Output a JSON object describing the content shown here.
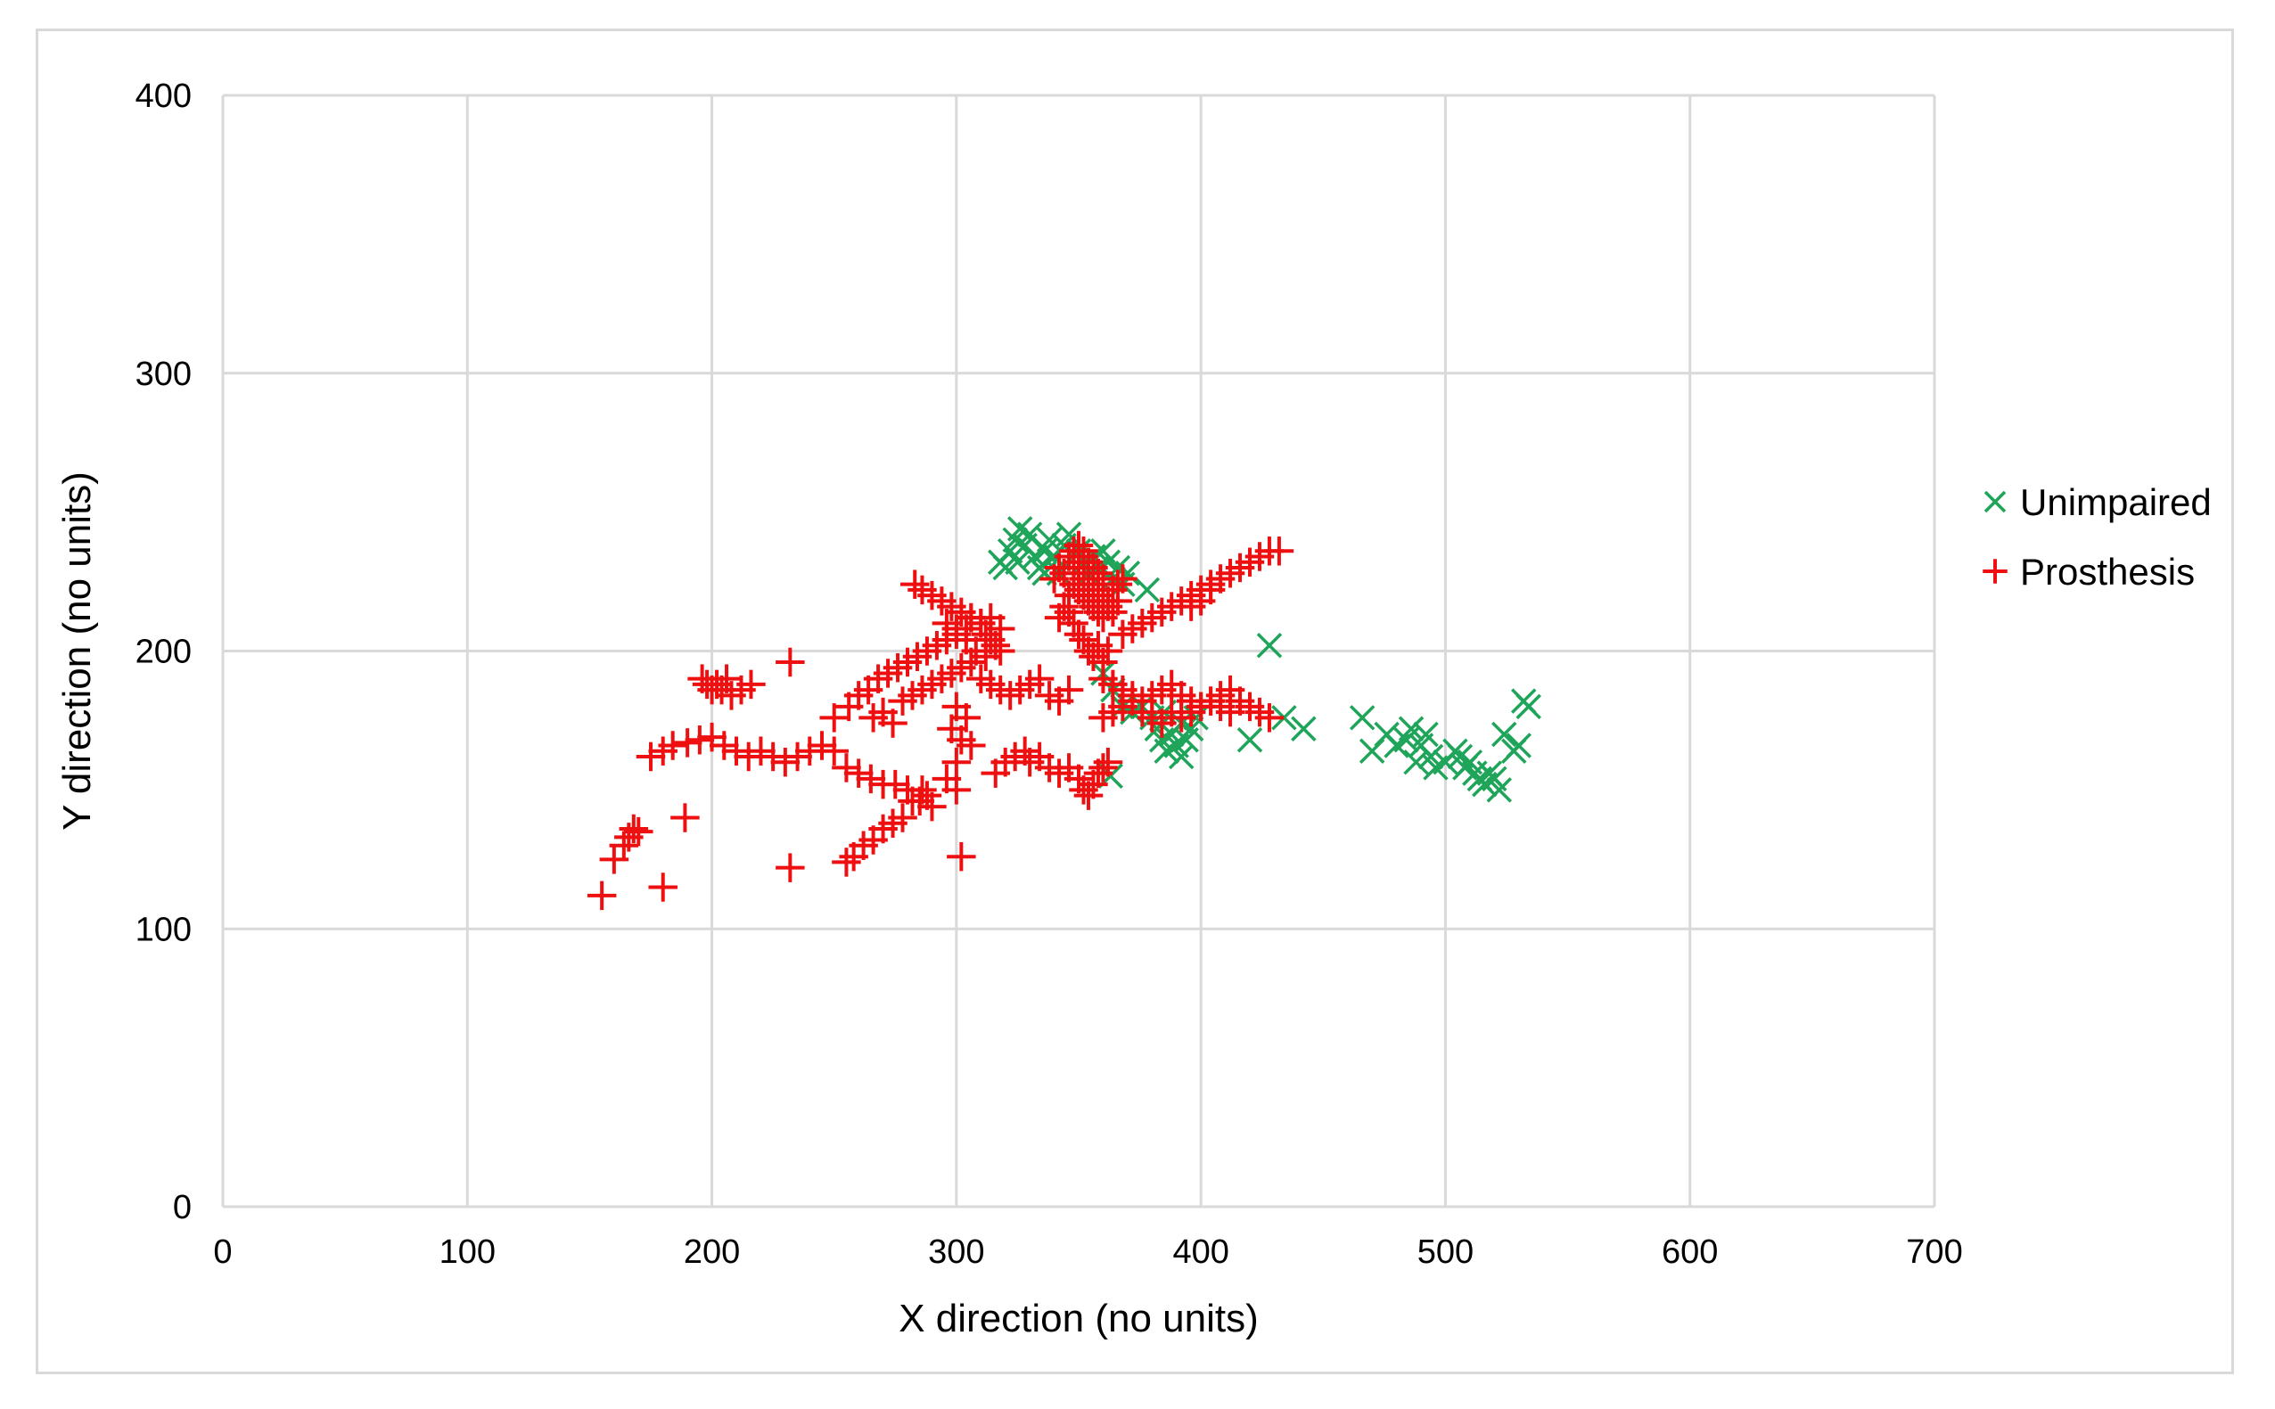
{
  "chart_data": {
    "type": "scatter",
    "title": "",
    "xlabel": "X direction (no units)",
    "ylabel": "Y direction (no units)",
    "xlim": [
      0,
      700
    ],
    "ylim": [
      0,
      400
    ],
    "x_ticks": [
      0,
      100,
      200,
      300,
      400,
      500,
      600,
      700
    ],
    "y_ticks": [
      0,
      100,
      200,
      300,
      400
    ],
    "grid": true,
    "legend_position": "right",
    "series": [
      {
        "name": "Unimpaired",
        "marker": "x",
        "color": "#1fa55a",
        "points": [
          [
            318,
            232
          ],
          [
            322,
            236
          ],
          [
            324,
            240
          ],
          [
            326,
            244
          ],
          [
            328,
            238
          ],
          [
            330,
            242
          ],
          [
            332,
            234
          ],
          [
            334,
            230
          ],
          [
            336,
            236
          ],
          [
            338,
            240
          ],
          [
            340,
            234
          ],
          [
            342,
            228
          ],
          [
            344,
            238
          ],
          [
            346,
            242
          ],
          [
            350,
            236
          ],
          [
            352,
            232
          ],
          [
            354,
            228
          ],
          [
            356,
            234
          ],
          [
            358,
            230
          ],
          [
            360,
            236
          ],
          [
            362,
            232
          ],
          [
            364,
            226
          ],
          [
            366,
            230
          ],
          [
            368,
            224
          ],
          [
            370,
            228
          ],
          [
            378,
            222
          ],
          [
            320,
            230
          ],
          [
            325,
            232
          ],
          [
            336,
            228
          ],
          [
            360,
            192
          ],
          [
            364,
            186
          ],
          [
            368,
            180
          ],
          [
            372,
            178
          ],
          [
            376,
            180
          ],
          [
            380,
            176
          ],
          [
            382,
            172
          ],
          [
            384,
            168
          ],
          [
            386,
            164
          ],
          [
            388,
            170
          ],
          [
            390,
            166
          ],
          [
            392,
            162
          ],
          [
            394,
            168
          ],
          [
            396,
            172
          ],
          [
            398,
            176
          ],
          [
            385,
            178
          ],
          [
            392,
            174
          ],
          [
            363,
            155
          ],
          [
            420,
            168
          ],
          [
            428,
            202
          ],
          [
            434,
            176
          ],
          [
            442,
            172
          ],
          [
            466,
            176
          ],
          [
            470,
            164
          ],
          [
            476,
            170
          ],
          [
            480,
            166
          ],
          [
            484,
            168
          ],
          [
            486,
            172
          ],
          [
            488,
            160
          ],
          [
            490,
            166
          ],
          [
            492,
            170
          ],
          [
            494,
            162
          ],
          [
            496,
            158
          ],
          [
            500,
            160
          ],
          [
            504,
            164
          ],
          [
            506,
            162
          ],
          [
            508,
            158
          ],
          [
            510,
            160
          ],
          [
            512,
            156
          ],
          [
            514,
            154
          ],
          [
            516,
            152
          ],
          [
            518,
            156
          ],
          [
            520,
            154
          ],
          [
            522,
            150
          ],
          [
            524,
            170
          ],
          [
            528,
            164
          ],
          [
            530,
            166
          ],
          [
            532,
            182
          ],
          [
            534,
            180
          ]
        ]
      },
      {
        "name": "Prosthesis",
        "marker": "+",
        "color": "#ee1010",
        "points": [
          [
            155,
            112
          ],
          [
            160,
            125
          ],
          [
            164,
            130
          ],
          [
            166,
            133
          ],
          [
            168,
            136
          ],
          [
            170,
            135
          ],
          [
            180,
            115
          ],
          [
            189,
            140
          ],
          [
            232,
            122
          ],
          [
            255,
            124
          ],
          [
            258,
            126
          ],
          [
            262,
            130
          ],
          [
            266,
            132
          ],
          [
            270,
            136
          ],
          [
            274,
            138
          ],
          [
            278,
            140
          ],
          [
            282,
            146
          ],
          [
            286,
            150
          ],
          [
            288,
            148
          ],
          [
            302,
            126
          ],
          [
            175,
            162
          ],
          [
            180,
            164
          ],
          [
            184,
            166
          ],
          [
            190,
            167
          ],
          [
            195,
            168
          ],
          [
            200,
            169
          ],
          [
            205,
            166
          ],
          [
            210,
            164
          ],
          [
            215,
            162
          ],
          [
            220,
            164
          ],
          [
            225,
            162
          ],
          [
            230,
            160
          ],
          [
            235,
            162
          ],
          [
            240,
            164
          ],
          [
            245,
            166
          ],
          [
            250,
            164
          ],
          [
            255,
            158
          ],
          [
            260,
            156
          ],
          [
            265,
            154
          ],
          [
            270,
            152
          ],
          [
            275,
            152
          ],
          [
            280,
            150
          ],
          [
            285,
            146
          ],
          [
            290,
            144
          ],
          [
            196,
            190
          ],
          [
            198,
            188
          ],
          [
            200,
            186
          ],
          [
            202,
            188
          ],
          [
            204,
            186
          ],
          [
            206,
            190
          ],
          [
            208,
            184
          ],
          [
            212,
            186
          ],
          [
            216,
            188
          ],
          [
            232,
            196
          ],
          [
            250,
            176
          ],
          [
            256,
            180
          ],
          [
            260,
            184
          ],
          [
            264,
            186
          ],
          [
            268,
            190
          ],
          [
            272,
            192
          ],
          [
            276,
            194
          ],
          [
            280,
            196
          ],
          [
            284,
            198
          ],
          [
            288,
            200
          ],
          [
            292,
            202
          ],
          [
            296,
            204
          ],
          [
            300,
            206
          ],
          [
            304,
            208
          ],
          [
            306,
            212
          ],
          [
            310,
            210
          ],
          [
            312,
            206
          ],
          [
            314,
            204
          ],
          [
            316,
            202
          ],
          [
            318,
            200
          ],
          [
            266,
            176
          ],
          [
            270,
            178
          ],
          [
            274,
            174
          ],
          [
            278,
            182
          ],
          [
            282,
            184
          ],
          [
            286,
            186
          ],
          [
            290,
            188
          ],
          [
            294,
            190
          ],
          [
            298,
            192
          ],
          [
            302,
            194
          ],
          [
            306,
            196
          ],
          [
            310,
            190
          ],
          [
            314,
            188
          ],
          [
            318,
            186
          ],
          [
            322,
            184
          ],
          [
            326,
            186
          ],
          [
            330,
            188
          ],
          [
            334,
            190
          ],
          [
            338,
            184
          ],
          [
            342,
            182
          ],
          [
            346,
            186
          ],
          [
            283,
            224
          ],
          [
            286,
            222
          ],
          [
            290,
            220
          ],
          [
            294,
            218
          ],
          [
            298,
            216
          ],
          [
            302,
            214
          ],
          [
            306,
            212
          ],
          [
            310,
            210
          ],
          [
            314,
            212
          ],
          [
            318,
            208
          ],
          [
            296,
            210
          ],
          [
            300,
            208
          ],
          [
            304,
            204
          ],
          [
            308,
            200
          ],
          [
            312,
            198
          ],
          [
            300,
            180
          ],
          [
            304,
            176
          ],
          [
            298,
            172
          ],
          [
            302,
            168
          ],
          [
            306,
            166
          ],
          [
            300,
            160
          ],
          [
            296,
            154
          ],
          [
            300,
            150
          ],
          [
            340,
            226
          ],
          [
            342,
            230
          ],
          [
            344,
            228
          ],
          [
            346,
            234
          ],
          [
            348,
            236
          ],
          [
            350,
            238
          ],
          [
            352,
            236
          ],
          [
            354,
            232
          ],
          [
            356,
            230
          ],
          [
            358,
            228
          ],
          [
            360,
            226
          ],
          [
            348,
            224
          ],
          [
            350,
            222
          ],
          [
            352,
            220
          ],
          [
            354,
            218
          ],
          [
            356,
            216
          ],
          [
            358,
            214
          ],
          [
            360,
            212
          ],
          [
            362,
            218
          ],
          [
            364,
            222
          ],
          [
            366,
            224
          ],
          [
            368,
            226
          ],
          [
            346,
            214
          ],
          [
            348,
            210
          ],
          [
            350,
            206
          ],
          [
            352,
            204
          ],
          [
            354,
            200
          ],
          [
            356,
            198
          ],
          [
            358,
            202
          ],
          [
            360,
            196
          ],
          [
            362,
            200
          ],
          [
            346,
            220
          ],
          [
            344,
            216
          ],
          [
            342,
            212
          ],
          [
            350,
            230
          ],
          [
            352,
            226
          ],
          [
            354,
            224
          ],
          [
            356,
            222
          ],
          [
            358,
            220
          ],
          [
            360,
            218
          ],
          [
            362,
            216
          ],
          [
            364,
            214
          ],
          [
            366,
            218
          ],
          [
            348,
            228
          ],
          [
            350,
            232
          ],
          [
            352,
            234
          ],
          [
            330,
            160
          ],
          [
            334,
            162
          ],
          [
            338,
            158
          ],
          [
            342,
            156
          ],
          [
            346,
            158
          ],
          [
            350,
            154
          ],
          [
            352,
            150
          ],
          [
            354,
            148
          ],
          [
            356,
            152
          ],
          [
            358,
            156
          ],
          [
            360,
            158
          ],
          [
            362,
            160
          ],
          [
            316,
            156
          ],
          [
            320,
            160
          ],
          [
            324,
            162
          ],
          [
            328,
            164
          ],
          [
            360,
            190
          ],
          [
            364,
            188
          ],
          [
            368,
            186
          ],
          [
            372,
            184
          ],
          [
            376,
            182
          ],
          [
            380,
            184
          ],
          [
            384,
            186
          ],
          [
            388,
            188
          ],
          [
            392,
            184
          ],
          [
            396,
            182
          ],
          [
            400,
            180
          ],
          [
            404,
            182
          ],
          [
            408,
            184
          ],
          [
            412,
            186
          ],
          [
            416,
            182
          ],
          [
            420,
            180
          ],
          [
            424,
            178
          ],
          [
            428,
            176
          ],
          [
            368,
            206
          ],
          [
            372,
            208
          ],
          [
            376,
            210
          ],
          [
            380,
            212
          ],
          [
            384,
            214
          ],
          [
            388,
            216
          ],
          [
            392,
            218
          ],
          [
            396,
            220
          ],
          [
            400,
            222
          ],
          [
            404,
            224
          ],
          [
            408,
            226
          ],
          [
            412,
            228
          ],
          [
            416,
            230
          ],
          [
            420,
            232
          ],
          [
            424,
            234
          ],
          [
            428,
            236
          ],
          [
            432,
            236
          ],
          [
            396,
            216
          ],
          [
            400,
            218
          ],
          [
            404,
            222
          ],
          [
            360,
            176
          ],
          [
            364,
            178
          ],
          [
            368,
            180
          ],
          [
            372,
            182
          ],
          [
            376,
            178
          ],
          [
            380,
            176
          ],
          [
            384,
            174
          ],
          [
            388,
            178
          ],
          [
            392,
            176
          ],
          [
            396,
            178
          ],
          [
            400,
            180
          ],
          [
            404,
            182
          ],
          [
            408,
            180
          ],
          [
            412,
            178
          ]
        ]
      }
    ]
  }
}
